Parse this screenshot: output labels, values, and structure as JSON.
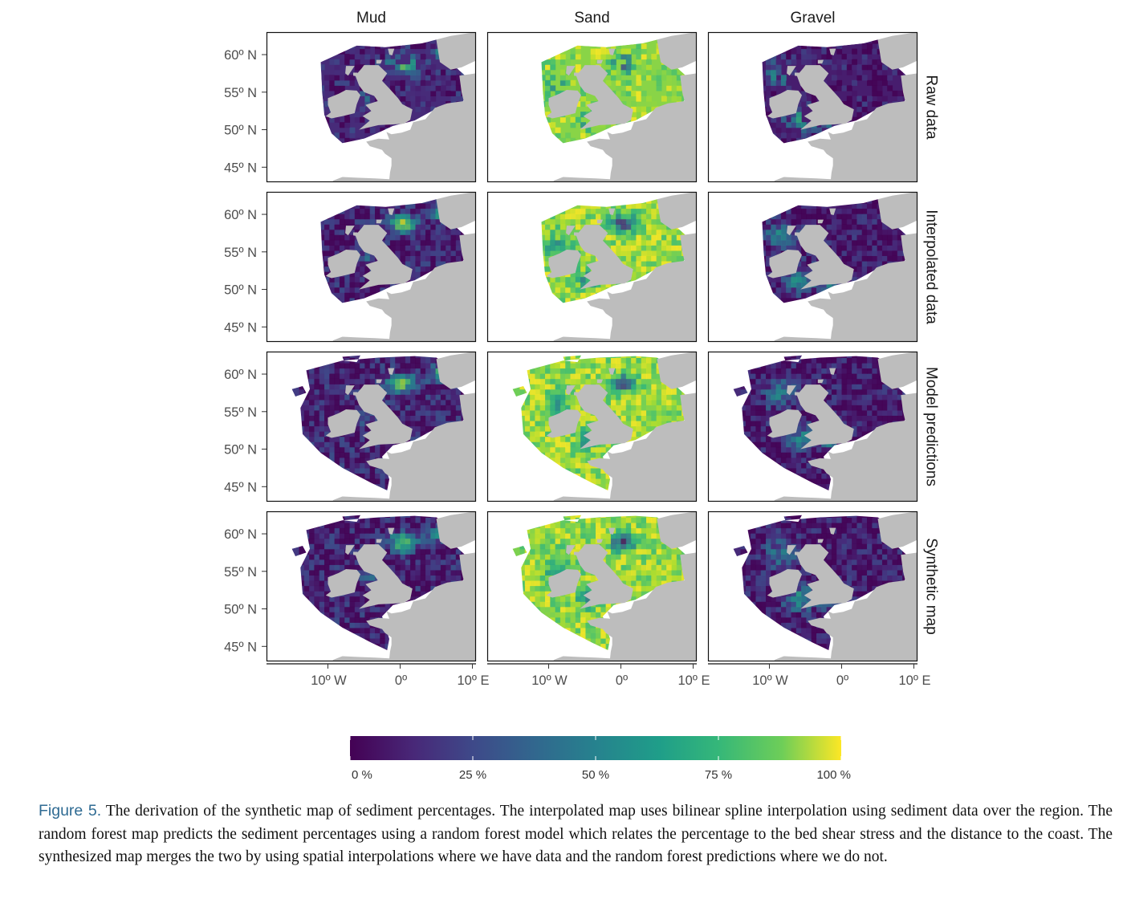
{
  "chart_data": {
    "type": "heatmap",
    "columns": [
      "Mud",
      "Sand",
      "Gravel"
    ],
    "rows": [
      "Raw data",
      "Interpolated data",
      "Model predictions",
      "Synthetic map"
    ],
    "y_ticks": [
      "60º N",
      "55º N",
      "50º N",
      "45º N"
    ],
    "y_tick_values": [
      60,
      55,
      50,
      45
    ],
    "x_ticks": [
      "10º W",
      "0º",
      "10º E"
    ],
    "x_tick_values": [
      -10,
      0,
      10
    ],
    "lon_range": [
      -18.5,
      10.5
    ],
    "lat_range": [
      43,
      63
    ],
    "colorbar": {
      "ticks": [
        "0 %",
        "25 %",
        "50 %",
        "75 %",
        "100 %"
      ],
      "tick_values": [
        0,
        25,
        50,
        75,
        100
      ],
      "colormap": "viridis",
      "colors": [
        "#440154",
        "#3b528b",
        "#21918c",
        "#5ec962",
        "#fde725"
      ]
    },
    "land_color": "#bdbdbd",
    "mean_levels": {
      "Mud": [
        0.12,
        0.15,
        0.18,
        0.17
      ],
      "Sand": [
        0.82,
        0.8,
        0.78,
        0.8
      ],
      "Gravel": [
        0.08,
        0.1,
        0.12,
        0.12
      ]
    }
  },
  "caption": {
    "label": "Figure 5.",
    "text": " The derivation of the synthetic map of sediment percentages. The interpolated map uses bilinear spline interpolation using sediment data over the region. The random forest map predicts the sediment percentages using a random forest model which relates the percentage to the bed shear stress and the distance to the coast. The synthesized map merges the two by using spatial interpolations where we have data and the random forest predictions where we do not."
  }
}
